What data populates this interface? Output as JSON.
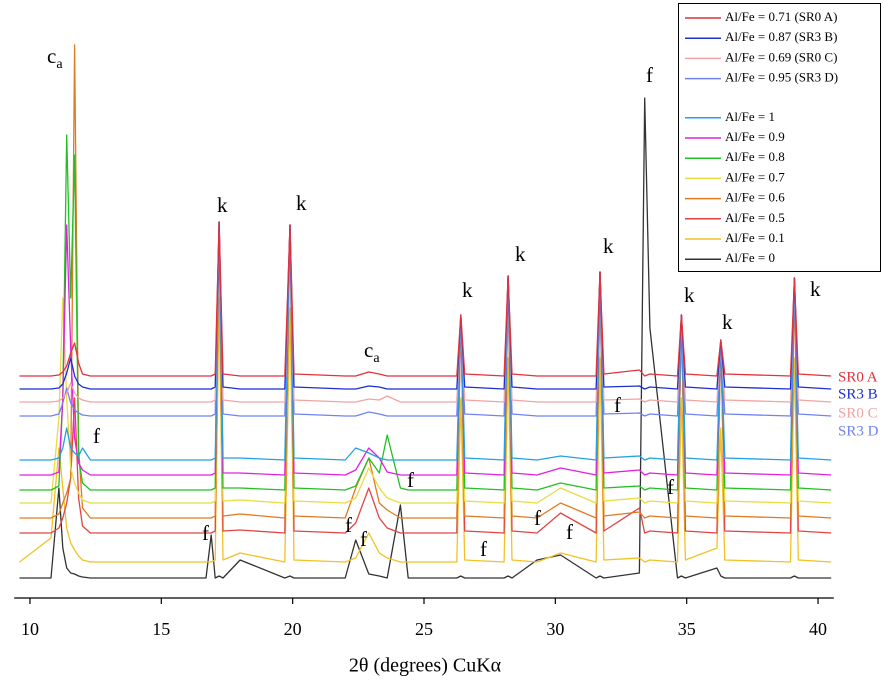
{
  "chart_data": {
    "type": "line",
    "xlabel": "2θ (degrees) CuKα",
    "xlim": [
      9.4,
      40.6
    ],
    "xticks": [
      10,
      15,
      20,
      25,
      30,
      35,
      40
    ],
    "ylim": [
      0,
      600
    ],
    "legend": "upper right",
    "x": [
      9.6,
      10.8,
      11.1,
      11.25,
      11.4,
      11.55,
      11.7,
      11.85,
      12.0,
      12.3,
      13,
      15,
      16.7,
      16.9,
      17.05,
      17.2,
      17.35,
      18.0,
      19.7,
      19.9,
      20.05,
      22.0,
      22.4,
      22.9,
      23.3,
      23.6,
      24.1,
      24.4,
      26.25,
      26.4,
      26.55,
      28.05,
      28.2,
      28.35,
      29.3,
      30.2,
      31.55,
      31.7,
      31.85,
      33.2,
      33.4,
      33.6,
      34.65,
      34.8,
      34.95,
      36.15,
      36.3,
      36.45,
      38.95,
      39.1,
      39.25,
      40.5
    ],
    "series": [
      {
        "name": "Al/Fe = 0.71 (SR0 A)",
        "color": "#e2323c",
        "values": [
          222,
          222,
          223,
          226,
          232,
          245,
          255,
          235,
          224,
          222,
          222,
          222,
          222,
          222,
          224,
          376,
          224,
          222,
          222,
          373,
          224,
          222,
          222,
          226,
          224,
          222,
          222,
          222,
          222,
          283,
          224,
          222,
          322,
          224,
          222,
          222,
          222,
          326,
          224,
          228,
          222,
          224,
          222,
          283,
          224,
          222,
          258,
          224,
          222,
          320,
          224,
          222
        ]
      },
      {
        "name": "Al/Fe = 0.87 (SR3 B)",
        "color": "#1c2fd2",
        "values": [
          209,
          209,
          210,
          214,
          225,
          240,
          222,
          214,
          211,
          209,
          209,
          209,
          209,
          209,
          211,
          376,
          211,
          209,
          209,
          373,
          211,
          209,
          209,
          212,
          211,
          209,
          209,
          209,
          209,
          283,
          211,
          209,
          322,
          211,
          209,
          209,
          209,
          326,
          211,
          212,
          209,
          211,
          209,
          283,
          211,
          209,
          258,
          211,
          209,
          320,
          211,
          209
        ]
      },
      {
        "name": "Al/Fe = 0.69 (SR0 C)",
        "color": "#f2a3a3",
        "values": [
          196,
          196,
          197,
          200,
          205,
          215,
          205,
          200,
          198,
          196,
          196,
          196,
          196,
          196,
          198,
          376,
          198,
          196,
          196,
          373,
          198,
          196,
          196,
          199,
          198,
          202,
          196,
          196,
          196,
          283,
          198,
          196,
          322,
          198,
          196,
          196,
          196,
          326,
          198,
          199,
          196,
          198,
          196,
          283,
          198,
          196,
          258,
          198,
          196,
          320,
          198,
          196
        ]
      },
      {
        "name": "Al/Fe = 0.95 (SR3 D)",
        "color": "#7183ef",
        "values": [
          182,
          182,
          184,
          195,
          210,
          195,
          188,
          185,
          183,
          182,
          182,
          182,
          182,
          182,
          184,
          376,
          184,
          182,
          182,
          373,
          184,
          182,
          182,
          186,
          184,
          182,
          182,
          182,
          182,
          283,
          184,
          182,
          322,
          184,
          182,
          182,
          182,
          326,
          184,
          185,
          182,
          184,
          182,
          283,
          184,
          182,
          258,
          184,
          182,
          320,
          184,
          182
        ]
      },
      {
        "name": "Al/Fe = 1",
        "color": "#22a2e2",
        "values": [
          138,
          138,
          140,
          150,
          170,
          150,
          145,
          142,
          150,
          138,
          138,
          138,
          138,
          138,
          140,
          376,
          140,
          140,
          138,
          373,
          140,
          138,
          150,
          145,
          140,
          138,
          138,
          138,
          138,
          283,
          140,
          138,
          322,
          140,
          138,
          142,
          138,
          326,
          140,
          142,
          138,
          140,
          138,
          283,
          140,
          138,
          258,
          140,
          138,
          320,
          140,
          138
        ]
      },
      {
        "name": "Al/Fe = 0.9",
        "color": "#e022e0",
        "values": [
          123,
          123,
          126,
          200,
          373,
          250,
          160,
          135,
          128,
          123,
          123,
          123,
          123,
          123,
          125,
          376,
          125,
          125,
          123,
          373,
          125,
          123,
          128,
          150,
          140,
          126,
          123,
          123,
          123,
          283,
          125,
          123,
          322,
          125,
          123,
          130,
          123,
          326,
          125,
          128,
          123,
          125,
          123,
          283,
          125,
          123,
          258,
          125,
          123,
          320,
          125,
          123
        ]
      },
      {
        "name": "Al/Fe = 0.8",
        "color": "#22c022",
        "values": [
          108,
          108,
          112,
          200,
          463,
          300,
          443,
          140,
          115,
          108,
          108,
          108,
          108,
          108,
          110,
          376,
          110,
          110,
          108,
          373,
          110,
          108,
          112,
          140,
          125,
          163,
          110,
          108,
          108,
          283,
          110,
          108,
          322,
          110,
          108,
          115,
          108,
          326,
          110,
          112,
          108,
          110,
          108,
          283,
          110,
          108,
          258,
          110,
          108,
          320,
          110,
          108
        ]
      },
      {
        "name": "Al/Fe = 0.7",
        "color": "#e8dc42",
        "values": [
          95,
          95,
          180,
          300,
          200,
          130,
          115,
          105,
          98,
          95,
          95,
          95,
          95,
          95,
          97,
          376,
          97,
          98,
          95,
          373,
          97,
          95,
          100,
          130,
          110,
          100,
          95,
          95,
          95,
          283,
          97,
          95,
          322,
          97,
          95,
          110,
          95,
          326,
          97,
          100,
          95,
          97,
          95,
          283,
          97,
          95,
          258,
          97,
          95,
          320,
          97,
          95
        ]
      },
      {
        "name": "Al/Fe = 0.6",
        "color": "#e07a22",
        "values": [
          80,
          80,
          84,
          95,
          105,
          120,
          553,
          150,
          90,
          80,
          80,
          80,
          80,
          80,
          82,
          376,
          82,
          84,
          80,
          373,
          82,
          80,
          110,
          140,
          95,
          88,
          80,
          80,
          80,
          283,
          82,
          80,
          322,
          82,
          80,
          95,
          80,
          326,
          82,
          86,
          80,
          82,
          80,
          283,
          82,
          80,
          258,
          82,
          80,
          320,
          82,
          80
        ]
      },
      {
        "name": "Al/Fe = 0.5",
        "color": "#e24444",
        "values": [
          65,
          65,
          70,
          80,
          95,
          120,
          200,
          100,
          72,
          65,
          65,
          65,
          65,
          65,
          67,
          376,
          67,
          68,
          65,
          373,
          67,
          65,
          75,
          110,
          80,
          70,
          65,
          65,
          65,
          283,
          67,
          65,
          322,
          67,
          65,
          85,
          65,
          326,
          67,
          90,
          65,
          67,
          65,
          283,
          67,
          65,
          258,
          67,
          65,
          320,
          67,
          65
        ]
      },
      {
        "name": "Al/Fe = 0.1",
        "color": "#f0c224",
        "values": [
          36,
          60,
          150,
          110,
          70,
          55,
          48,
          42,
          38,
          36,
          36,
          36,
          36,
          36,
          38,
          300,
          38,
          45,
          36,
          290,
          38,
          36,
          40,
          65,
          45,
          40,
          36,
          36,
          36,
          200,
          38,
          36,
          240,
          38,
          36,
          45,
          36,
          240,
          38,
          40,
          36,
          38,
          36,
          200,
          38,
          50,
          170,
          38,
          36,
          240,
          38,
          36
        ]
      },
      {
        "name": "Al/Fe = 0",
        "color": "#333333",
        "values": [
          20,
          20,
          110,
          50,
          30,
          25,
          24,
          22,
          21,
          20,
          20,
          20,
          20,
          63,
          20,
          22,
          20,
          38,
          20,
          22,
          20,
          20,
          58,
          24,
          22,
          20,
          93,
          20,
          20,
          22,
          20,
          20,
          22,
          20,
          38,
          43,
          20,
          22,
          20,
          25,
          500,
          270,
          20,
          22,
          20,
          30,
          22,
          20,
          20,
          22,
          20,
          20
        ]
      }
    ],
    "side_labels": [
      "SR0 A",
      "SR3 B",
      "SR0 C",
      "SR3 D"
    ],
    "annotations": [
      {
        "text": "c",
        "sub": "a"
      },
      {
        "text": "k"
      },
      {
        "text": "k"
      },
      {
        "text": "k"
      },
      {
        "text": "k"
      },
      {
        "text": "k"
      },
      {
        "text": "k"
      },
      {
        "text": "k"
      },
      {
        "text": "k"
      },
      {
        "text": "c",
        "sub": "a"
      },
      {
        "text": "f"
      },
      {
        "text": "f"
      },
      {
        "text": "f"
      },
      {
        "text": "f"
      },
      {
        "text": "f"
      },
      {
        "text": "f"
      },
      {
        "text": "f"
      },
      {
        "text": "f"
      },
      {
        "text": "f"
      },
      {
        "text": "f"
      },
      {
        "text": "f"
      }
    ]
  }
}
